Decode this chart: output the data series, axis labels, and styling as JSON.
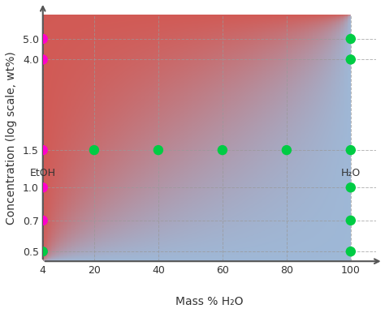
{
  "x_ticks": [
    4,
    20,
    40,
    60,
    80,
    100
  ],
  "y_ticks": [
    0.5,
    0.7,
    1.0,
    1.5,
    4.0,
    5.0
  ],
  "x_label": "Mass % H₂O",
  "x_label_left": "EtOH",
  "x_label_right": "H₂O",
  "y_label": "Concentration (log scale, wt%)",
  "magenta_dots": [
    [
      4,
      0.5
    ],
    [
      4,
      0.7
    ],
    [
      4,
      1.0
    ],
    [
      4,
      1.5
    ],
    [
      4,
      4.0
    ],
    [
      4,
      5.0
    ]
  ],
  "green_dots": [
    [
      4,
      0.5
    ],
    [
      20,
      1.5
    ],
    [
      40,
      1.5
    ],
    [
      60,
      1.5
    ],
    [
      80,
      1.5
    ],
    [
      100,
      1.5
    ],
    [
      100,
      1.0
    ],
    [
      100,
      0.7
    ],
    [
      100,
      0.5
    ],
    [
      100,
      4.0
    ],
    [
      100,
      5.0
    ]
  ],
  "dot_size": 80,
  "magenta_color": "#FF00CC",
  "green_color": "#00CC44",
  "xlim": [
    4,
    100
  ],
  "ylim_log": [
    0.45,
    6.5
  ],
  "bg_color": "#f0f0f0",
  "grid_color": "#999999",
  "axis_color": "#555555"
}
